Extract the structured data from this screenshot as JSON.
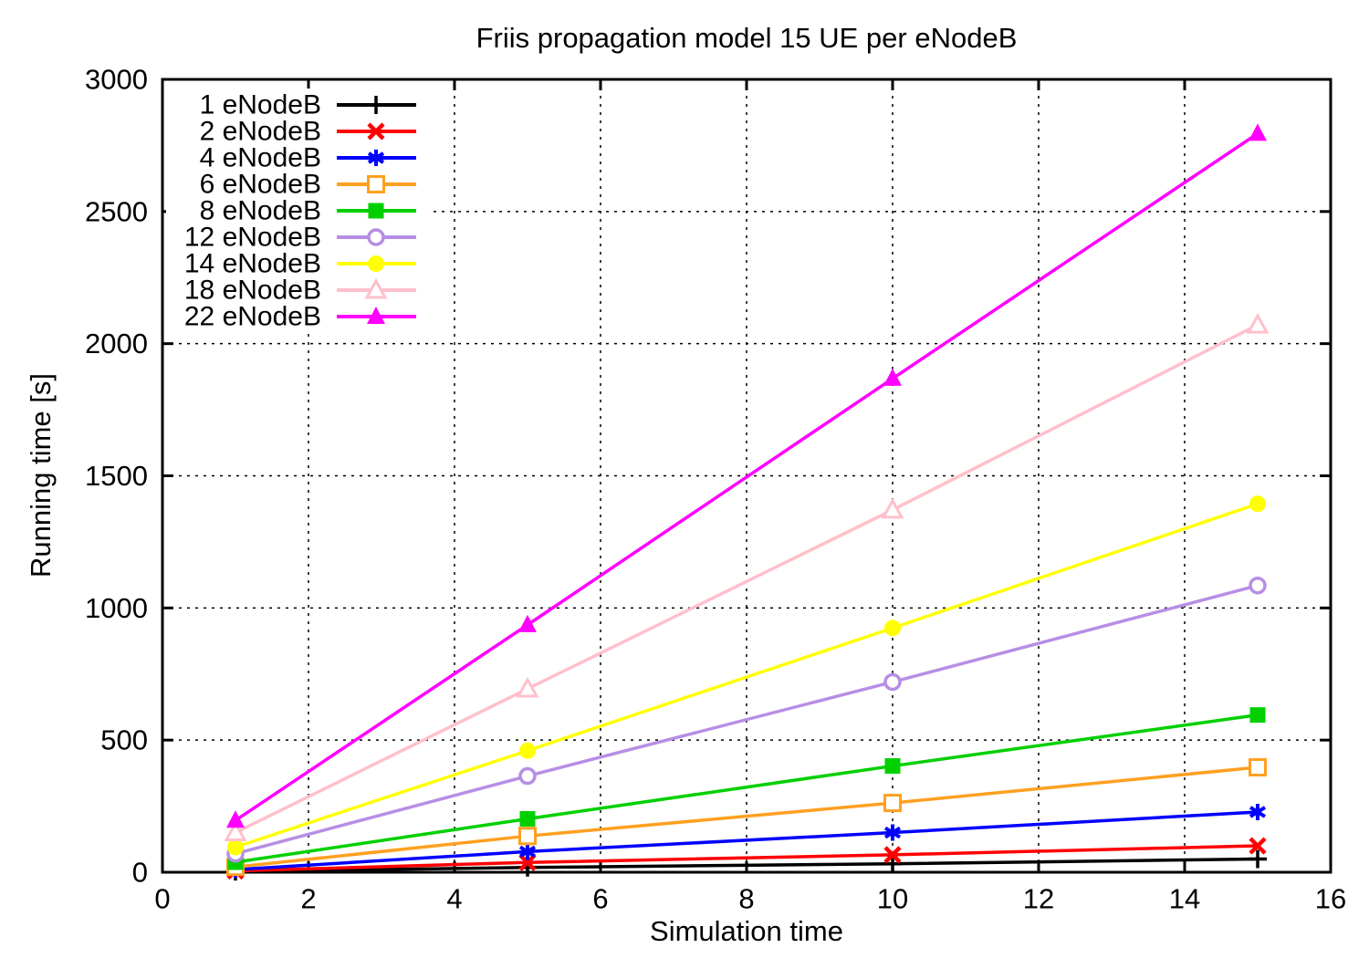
{
  "page": {
    "background": "#ffffff"
  },
  "chart_data": {
    "type": "line",
    "title": "Friis propagation model 15 UE per eNodeB",
    "xlabel": "Simulation time",
    "ylabel": "Running time [s]",
    "xlim": [
      0,
      16
    ],
    "ylim": [
      0,
      3000
    ],
    "xticks": [
      0,
      2,
      4,
      6,
      8,
      10,
      12,
      14,
      16
    ],
    "yticks": [
      0,
      500,
      1000,
      1500,
      2000,
      2500,
      3000
    ],
    "grid": true,
    "grid_color": "#000000",
    "legend_position": "top-left",
    "x": [
      1,
      5,
      10,
      15
    ],
    "series": [
      {
        "name": "1 eNodeB",
        "color": "#000000",
        "marker": "plus",
        "values": [
          3,
          18,
          32,
          50
        ]
      },
      {
        "name": "2 eNodeB",
        "color": "#ff0000",
        "marker": "x",
        "values": [
          5,
          37,
          66,
          100
        ]
      },
      {
        "name": "4 eNodeB",
        "color": "#0000ff",
        "marker": "asterisk",
        "values": [
          10,
          78,
          150,
          228
        ]
      },
      {
        "name": "6 eNodeB",
        "color": "#ffa020",
        "marker": "square-open",
        "values": [
          20,
          137,
          262,
          397
        ]
      },
      {
        "name": "8 eNodeB",
        "color": "#00d000",
        "marker": "square-filled",
        "values": [
          38,
          202,
          402,
          595
        ]
      },
      {
        "name": "12 eNodeB",
        "color": "#b78ee5",
        "marker": "circle-open",
        "values": [
          70,
          364,
          720,
          1085
        ]
      },
      {
        "name": "14 eNodeB",
        "color": "#ffff00",
        "marker": "circle-filled",
        "values": [
          95,
          460,
          924,
          1394
        ]
      },
      {
        "name": "18 eNodeB",
        "color": "#ffc0cb",
        "marker": "triangle-open",
        "values": [
          150,
          694,
          1371,
          2071
        ]
      },
      {
        "name": "22 eNodeB",
        "color": "#ff00ff",
        "marker": "triangle-filled",
        "values": [
          196,
          936,
          1868,
          2795
        ]
      }
    ]
  }
}
